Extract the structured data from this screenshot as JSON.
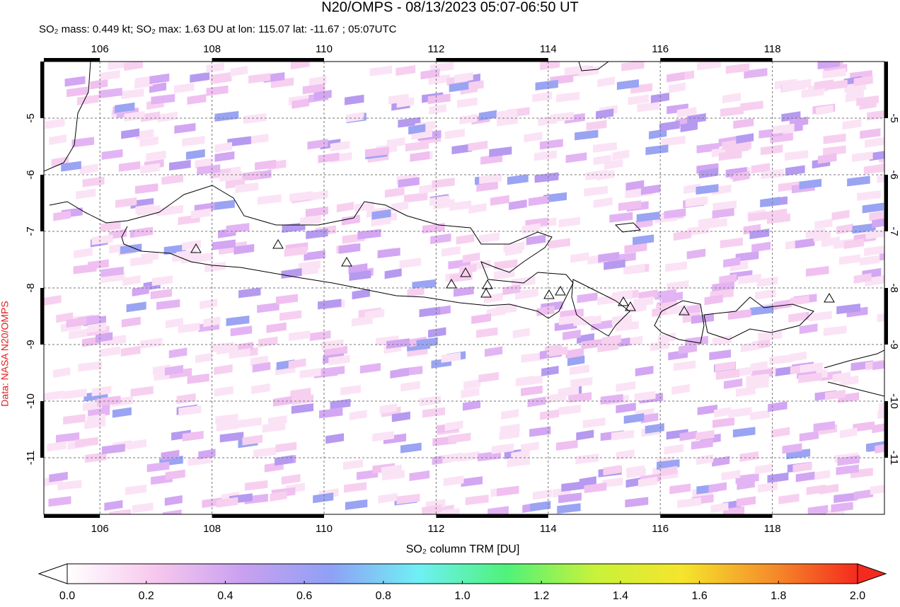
{
  "chart_data": {
    "type": "map",
    "title": "N20/OMPS - 08/13/2023 05:07-06:50 UT",
    "subtitle": "SO₂ mass: 0.449 kt; SO₂ max: 1.63 DU at lon: 115.07 lat: -11.67 ; 05:07UTC",
    "credit": "Data: NASA N20/OMPS",
    "xlim": [
      105,
      120
    ],
    "ylim": [
      -12,
      -4
    ],
    "xticks": [
      106,
      108,
      110,
      112,
      114,
      116,
      118
    ],
    "yticks": [
      -5,
      -6,
      -7,
      -8,
      -9,
      -10,
      -11
    ],
    "grid": true,
    "colorbar": {
      "label": "SO₂ column TRM [DU]",
      "lim": [
        0,
        2
      ],
      "colors": [
        "#ffffff",
        "#f6c8ee",
        "#c9a0f0",
        "#8fa0f5",
        "#6ff0f5",
        "#4ef27a",
        "#c8f23a",
        "#f5e52c",
        "#f5902a",
        "#f52a1e"
      ],
      "ticks": [
        {
          "value": 0,
          "label": "0.0"
        },
        {
          "value": 0.2,
          "label": "0.2"
        },
        {
          "value": 0.4,
          "label": "0.4"
        },
        {
          "value": 0.6,
          "label": "0.6"
        },
        {
          "value": 0.8,
          "label": "0.8"
        },
        {
          "value": 1.0,
          "label": "1.0"
        },
        {
          "value": 1.2,
          "label": "1.2"
        },
        {
          "value": 1.4,
          "label": "1.4"
        },
        {
          "value": 1.6,
          "label": "1.6"
        },
        {
          "value": 1.8,
          "label": "1.8"
        },
        {
          "value": 2.0,
          "label": "2.0"
        }
      ]
    }
  }
}
